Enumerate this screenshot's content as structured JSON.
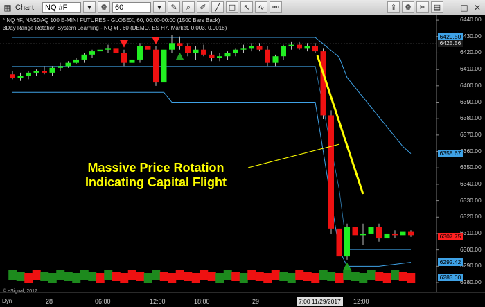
{
  "toolbar": {
    "title": "Chart",
    "symbol": "NQ #F",
    "interval": "60",
    "icons": [
      "chart-icon",
      "period-gear-icon",
      "pencil-icon",
      "magnifier-icon",
      "draw-icon",
      "line-icon",
      "square-icon",
      "cursor-icon",
      "indicator-icon",
      "link-icon",
      "export-icon",
      "gear-icon",
      "tools-icon",
      "grid-icon",
      "minimize-icon",
      "maximize-icon",
      "close-icon"
    ]
  },
  "info": {
    "line1": "* NQ #F, NASDAQ 100 E-MINI FUTURES - GLOBEX, 60, 00:00-00:00 (1500 Bars Back)",
    "line2": "3Day Range Rotation System Learning - NQ #F, 60 (DEMO, ES H7, Market, 0.003, 0.0018)"
  },
  "annotation": {
    "line1": "Massive Price Rotation",
    "line2": "Indicating Capital Flight"
  },
  "axis": {
    "y_labels": [
      "6440.00",
      "6430.00",
      "6420.00",
      "6410.00",
      "6400.00",
      "6390.00",
      "6380.00",
      "6370.00",
      "6360.00",
      "6350.00",
      "6340.00",
      "6330.00",
      "6320.00",
      "6310.00",
      "6300.00",
      "6290.00",
      "6280.00"
    ],
    "price_tags": [
      {
        "text": "6429.50",
        "bg": "#3fa2e6",
        "fg": "#000000"
      },
      {
        "text": "6425.56",
        "bg": "#1a1a1a",
        "fg": "#dddddd"
      },
      {
        "text": "6358.67",
        "bg": "#3fa2e6",
        "fg": "#000000"
      },
      {
        "text": "6307.75",
        "bg": "#ff2020",
        "fg": "#000000"
      },
      {
        "text": "6292.42",
        "bg": "#3fa2e6",
        "fg": "#000000"
      },
      {
        "text": "6283.00",
        "bg": "#3fa2e6",
        "fg": "#000000"
      }
    ],
    "x_labels": [
      "28",
      "06:00",
      "12:00",
      "18:00",
      "29",
      "12:00"
    ],
    "x_highlight": "7:00 11/29/2017",
    "dyn": "Dyn"
  },
  "copyright": "© eSignal, 2017",
  "colors": {
    "up": "#22ee22",
    "down": "#ee1111",
    "band": "#3fa2e6",
    "accent": "#ffff00"
  },
  "chart_data": {
    "type": "candlestick",
    "candles": [
      [
        6407,
        6409,
        6404,
        6405
      ],
      [
        6405,
        6408,
        6403,
        6406
      ],
      [
        6406,
        6409,
        6404,
        6408
      ],
      [
        6408,
        6410,
        6406,
        6409
      ],
      [
        6409,
        6412,
        6407,
        6408
      ],
      [
        6408,
        6412,
        6406,
        6411
      ],
      [
        6411,
        6414,
        6409,
        6412
      ],
      [
        6412,
        6415,
        6411,
        6414
      ],
      [
        6414,
        6417,
        6413,
        6416
      ],
      [
        6416,
        6420,
        6414,
        6419
      ],
      [
        6419,
        6422,
        6417,
        6421
      ],
      [
        6421,
        6424,
        6419,
        6422
      ],
      [
        6422,
        6425,
        6420,
        6423
      ],
      [
        6423,
        6426,
        6418,
        6420
      ],
      [
        6420,
        6422,
        6412,
        6414
      ],
      [
        6414,
        6418,
        6412,
        6416
      ],
      [
        6416,
        6426,
        6414,
        6424
      ],
      [
        6424,
        6428,
        6420,
        6422
      ],
      [
        6422,
        6424,
        6400,
        6402
      ],
      [
        6402,
        6424,
        6398,
        6422
      ],
      [
        6422,
        6431,
        6420,
        6426
      ],
      [
        6426,
        6430,
        6422,
        6424
      ],
      [
        6424,
        6426,
        6418,
        6420
      ],
      [
        6420,
        6424,
        6416,
        6422
      ],
      [
        6422,
        6425,
        6418,
        6419
      ],
      [
        6419,
        6421,
        6415,
        6417
      ],
      [
        6417,
        6420,
        6415,
        6418
      ],
      [
        6418,
        6421,
        6416,
        6420
      ],
      [
        6420,
        6423,
        6418,
        6422
      ],
      [
        6422,
        6425,
        6420,
        6423
      ],
      [
        6423,
        6426,
        6421,
        6424
      ],
      [
        6424,
        6426,
        6421,
        6422
      ],
      [
        6422,
        6424,
        6412,
        6414
      ],
      [
        6414,
        6419,
        6412,
        6418
      ],
      [
        6418,
        6425,
        6416,
        6424
      ],
      [
        6424,
        6427,
        6422,
        6425
      ],
      [
        6425,
        6427,
        6422,
        6423
      ],
      [
        6423,
        6426,
        6421,
        6424
      ],
      [
        6424,
        6426,
        6420,
        6421
      ],
      [
        6421,
        6423,
        6380,
        6382
      ],
      [
        6382,
        6385,
        6310,
        6313
      ],
      [
        6313,
        6316,
        6294,
        6296
      ],
      [
        6296,
        6316,
        6294,
        6314
      ],
      [
        6314,
        6325,
        6305,
        6309
      ],
      [
        6309,
        6316,
        6303,
        6310
      ],
      [
        6310,
        6315,
        6306,
        6314
      ],
      [
        6314,
        6316,
        6305,
        6307
      ],
      [
        6307,
        6312,
        6306,
        6310
      ],
      [
        6310,
        6312,
        6307,
        6309
      ],
      [
        6309,
        6312,
        6307,
        6311
      ],
      [
        6311,
        6312,
        6308,
        6309
      ]
    ],
    "signal_markers": [
      {
        "type": "sell",
        "bar": 14
      },
      {
        "type": "sell",
        "bar": 18
      },
      {
        "type": "buy",
        "bar": 21
      },
      {
        "type": "buy",
        "bar": 42
      }
    ],
    "signal_bar_colors": [
      "g",
      "g",
      "r",
      "r",
      "g",
      "g",
      "g",
      "g",
      "g",
      "g",
      "g",
      "r",
      "g",
      "r",
      "r",
      "r",
      "r",
      "g",
      "g",
      "r",
      "r",
      "r",
      "r",
      "r",
      "r",
      "r",
      "g",
      "g",
      "r",
      "g",
      "r",
      "r",
      "r",
      "r",
      "g",
      "g",
      "r",
      "r",
      "r",
      "g",
      "g",
      "r",
      "g",
      "g",
      "g",
      "g",
      "r",
      "r",
      "g",
      "r",
      "r"
    ],
    "ylim": [
      6280,
      6443
    ]
  }
}
